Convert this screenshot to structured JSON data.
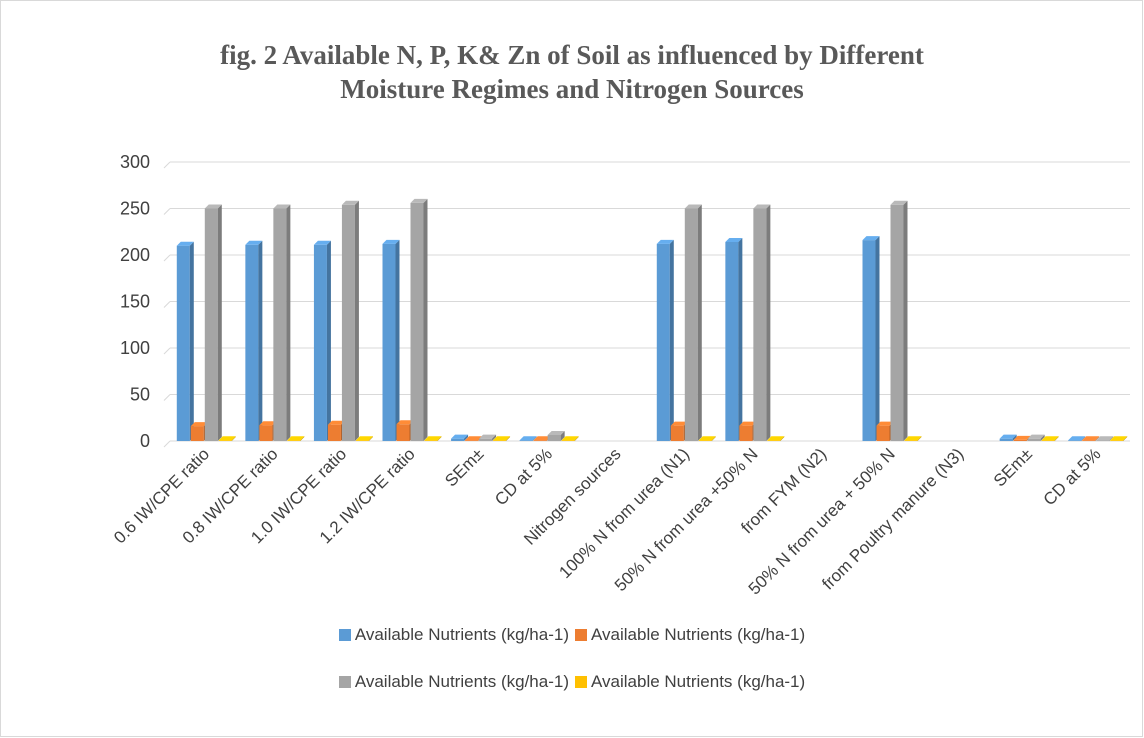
{
  "colors": {
    "series": [
      "#5b9bd5",
      "#ed7d31",
      "#a5a5a5",
      "#ffc000"
    ],
    "grid": "#d9d9d9",
    "text": "#595959"
  },
  "chart_data": {
    "type": "bar",
    "title": "fig. 2 Available N, P, K& Zn of Soil as influenced by Different Moisture Regimes and Nitrogen Sources",
    "title_lines": [
      "fig. 2 Available N, P, K& Zn of Soil as influenced by Different",
      "Moisture Regimes and Nitrogen Sources"
    ],
    "xlabel": "",
    "ylabel": "",
    "ylim": [
      0,
      300
    ],
    "yticks": [
      0,
      50,
      100,
      150,
      200,
      250,
      300
    ],
    "grid": true,
    "legend_position": "bottom",
    "categories": [
      "0.6 IW/CPE ratio",
      "0.8 IW/CPE ratio",
      "1.0 IW/CPE ratio",
      "1.2 IW/CPE ratio",
      "SEm±",
      "CD at 5%",
      "Nitrogen sources",
      "100% N from urea (N1)",
      "50% N from urea +50% N",
      "from FYM (N2)",
      "50% N from urea + 50% N",
      "from Poultry manure (N3)",
      "SEm±",
      "CD at 5%"
    ],
    "series": [
      {
        "name": "Available Nutrients (kg/ha-1)",
        "values": [
          210,
          211,
          211,
          212,
          2.5,
          0.2,
          0,
          212,
          214,
          0,
          216,
          0,
          2.5,
          0.2
        ]
      },
      {
        "name": "Available Nutrients (kg/ha-1)",
        "values": [
          16,
          17,
          17.5,
          18,
          0.8,
          0.5,
          0,
          16.5,
          16.5,
          0,
          16.5,
          0,
          1.2,
          0.5
        ]
      },
      {
        "name": "Available Nutrients (kg/ha-1)",
        "values": [
          250,
          250,
          254,
          256,
          2.5,
          6.5,
          0,
          250,
          250,
          0,
          254,
          0,
          2.5,
          0.3
        ]
      },
      {
        "name": "Available Nutrients (kg/ha-1)",
        "values": [
          0.8,
          0.8,
          0.8,
          0.8,
          0.1,
          0.1,
          0,
          0.8,
          0.8,
          0,
          0.8,
          0,
          0.1,
          0.1
        ]
      }
    ]
  }
}
